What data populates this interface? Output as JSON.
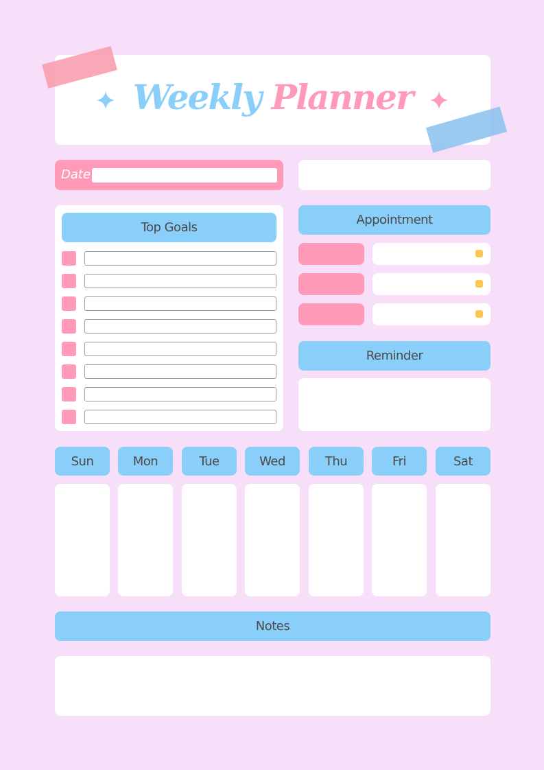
{
  "header": {
    "title_part1": "Weekly",
    "title_part2": "Planner"
  },
  "date": {
    "label": "Date",
    "value": ""
  },
  "goals": {
    "title": "Top Goals",
    "items": [
      "",
      "",
      "",
      "",
      "",
      "",
      "",
      ""
    ]
  },
  "appointment": {
    "title": "Appointment",
    "rows": 3
  },
  "reminder": {
    "title": "Reminder"
  },
  "days": [
    "Sun",
    "Mon",
    "Tue",
    "Wed",
    "Thu",
    "Fri",
    "Sat"
  ],
  "notes": {
    "title": "Notes"
  },
  "colors": {
    "background": "#f7def9",
    "pink": "#ff9ab8",
    "blue": "#8acff9",
    "yellow": "#fdc652",
    "text": "#4a4a4a"
  }
}
